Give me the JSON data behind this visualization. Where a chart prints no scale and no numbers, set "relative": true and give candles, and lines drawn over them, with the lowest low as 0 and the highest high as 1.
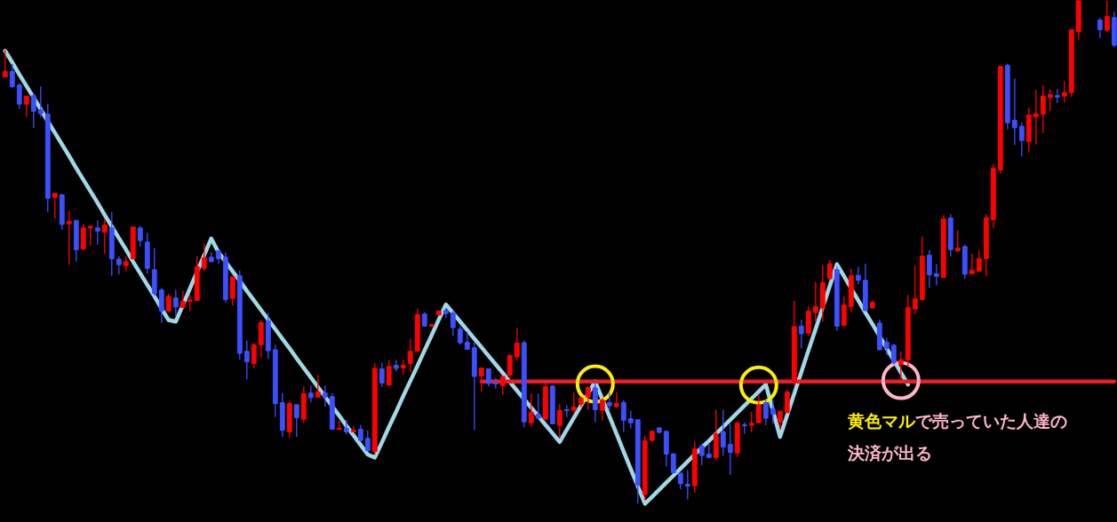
{
  "chart_data": {
    "type": "candlestick",
    "relative": true,
    "tick_labels": false,
    "categories": [
      null,
      null,
      null,
      null,
      null,
      null,
      null,
      null,
      null,
      null,
      null,
      null,
      null,
      null,
      null,
      null,
      null,
      null,
      null,
      null,
      null,
      null,
      null,
      null,
      null,
      null,
      null,
      null,
      null,
      null,
      null,
      null,
      null,
      null,
      null,
      null,
      null,
      null,
      null,
      null,
      null,
      null,
      null,
      null,
      null,
      null,
      null,
      null,
      null,
      null,
      null,
      null,
      null,
      null,
      null,
      null,
      null,
      null,
      null,
      null,
      null,
      null,
      null,
      null,
      null,
      null,
      null,
      null,
      null,
      null,
      null,
      null,
      null,
      null,
      null,
      null,
      null,
      null,
      null,
      null,
      null,
      null,
      null,
      null,
      null,
      null,
      null,
      null,
      null,
      null,
      null,
      null,
      null,
      null,
      null,
      null,
      null,
      null,
      null,
      null,
      null,
      null,
      null,
      null,
      null,
      null,
      null,
      null,
      null,
      null,
      null,
      null,
      null,
      null,
      null,
      null,
      null,
      null,
      null,
      null,
      null,
      null,
      null,
      null,
      null,
      null,
      null,
      null,
      null,
      null,
      null,
      null,
      null,
      null,
      null,
      null,
      null,
      null,
      null,
      null,
      null,
      null,
      null,
      null,
      null,
      null,
      null,
      null,
      null,
      null,
      null,
      null,
      null,
      null,
      null,
      null,
      null
    ],
    "ohlc": [
      [
        0.848,
        0.903,
        0.848,
        0.859
      ],
      [
        0.859,
        0.874,
        0.826,
        0.829
      ],
      [
        0.832,
        0.835,
        0.785,
        0.794
      ],
      [
        0.794,
        0.81,
        0.769,
        0.81
      ],
      [
        0.811,
        0.815,
        0.747,
        0.78
      ],
      [
        0.783,
        0.829,
        0.769,
        0.775
      ],
      [
        0.774,
        0.795,
        0.58,
        0.607
      ],
      [
        0.609,
        0.617,
        0.566,
        0.617
      ],
      [
        0.614,
        0.616,
        0.545,
        0.555
      ],
      [
        0.556,
        0.582,
        0.475,
        0.561
      ],
      [
        0.563,
        0.563,
        0.481,
        0.505
      ],
      [
        0.506,
        0.556,
        0.505,
        0.548
      ],
      [
        0.548,
        0.554,
        0.513,
        0.551
      ],
      [
        0.548,
        0.563,
        0.515,
        0.542
      ],
      [
        0.54,
        0.565,
        0.497,
        0.554
      ],
      [
        0.548,
        0.58,
        0.453,
        0.487
      ],
      [
        0.486,
        0.492,
        0.456,
        0.475
      ],
      [
        0.473,
        0.492,
        0.462,
        0.481
      ],
      [
        0.487,
        0.55,
        0.487,
        0.55
      ],
      [
        0.548,
        0.552,
        0.511,
        0.523
      ],
      [
        0.52,
        0.538,
        0.457,
        0.468
      ],
      [
        0.465,
        0.508,
        0.413,
        0.418
      ],
      [
        0.425,
        0.429,
        0.36,
        0.383
      ],
      [
        0.383,
        0.417,
        0.381,
        0.412
      ],
      [
        0.409,
        0.425,
        0.374,
        0.391
      ],
      [
        0.39,
        0.423,
        0.39,
        0.402
      ],
      [
        0.402,
        0.415,
        0.383,
        0.405
      ],
      [
        0.404,
        0.492,
        0.404,
        0.471
      ],
      [
        0.468,
        0.517,
        0.462,
        0.489
      ],
      [
        0.49,
        0.5,
        0.48,
        0.481
      ],
      [
        0.503,
        0.503,
        0.477,
        0.487
      ],
      [
        0.49,
        0.499,
        0.4,
        0.406
      ],
      [
        0.408,
        0.451,
        0.394,
        0.451
      ],
      [
        0.453,
        0.464,
        0.286,
        0.299
      ],
      [
        0.303,
        0.324,
        0.247,
        0.282
      ],
      [
        0.279,
        0.319,
        0.269,
        0.316
      ],
      [
        0.316,
        0.365,
        0.291,
        0.36
      ],
      [
        0.364,
        0.379,
        0.288,
        0.304
      ],
      [
        0.306,
        0.316,
        0.173,
        0.199
      ],
      [
        0.201,
        0.22,
        0.133,
        0.146
      ],
      [
        0.143,
        0.203,
        0.131,
        0.199
      ],
      [
        0.197,
        0.197,
        0.133,
        0.171
      ],
      [
        0.168,
        0.233,
        0.161,
        0.219
      ],
      [
        0.22,
        0.235,
        0.202,
        0.211
      ],
      [
        0.212,
        0.256,
        0.211,
        0.222
      ],
      [
        0.22,
        0.235,
        0.193,
        0.212
      ],
      [
        0.213,
        0.22,
        0.148,
        0.148
      ],
      [
        0.148,
        0.165,
        0.148,
        0.15
      ],
      [
        0.15,
        0.167,
        0.138,
        0.143
      ],
      [
        0.143,
        0.155,
        0.142,
        0.146
      ],
      [
        0.148,
        0.157,
        0.125,
        0.126
      ],
      [
        0.13,
        0.146,
        0.104,
        0.106
      ],
      [
        0.104,
        0.279,
        0.097,
        0.269
      ],
      [
        0.268,
        0.28,
        0.232,
        0.24
      ],
      [
        0.236,
        0.286,
        0.234,
        0.273
      ],
      [
        0.275,
        0.286,
        0.263,
        0.269
      ],
      [
        0.27,
        0.286,
        0.256,
        0.275
      ],
      [
        0.279,
        0.328,
        0.262,
        0.303
      ],
      [
        0.303,
        0.388,
        0.303,
        0.376
      ],
      [
        0.377,
        0.381,
        0.352,
        0.353
      ],
      [
        0.353,
        0.356,
        0.353,
        0.356
      ],
      [
        0.375,
        0.383,
        0.375,
        0.383
      ],
      [
        0.384,
        0.389,
        0.369,
        0.378
      ],
      [
        0.379,
        0.383,
        0.334,
        0.35
      ],
      [
        0.347,
        0.353,
        0.316,
        0.32
      ],
      [
        0.321,
        0.342,
        0.306,
        0.307
      ],
      [
        0.31,
        0.321,
        0.147,
        0.253
      ],
      [
        0.254,
        0.27,
        0.223,
        0.27
      ],
      [
        0.268,
        0.268,
        0.233,
        0.239
      ],
      [
        0.24,
        0.25,
        0.229,
        0.238
      ],
      [
        0.235,
        0.253,
        0.217,
        0.253
      ],
      [
        0.256,
        0.296,
        0.25,
        0.295
      ],
      [
        0.292,
        0.349,
        0.284,
        0.319
      ],
      [
        0.32,
        0.325,
        0.152,
        0.163
      ],
      [
        0.161,
        0.219,
        0.153,
        0.182
      ],
      [
        0.178,
        0.219,
        0.169,
        0.17
      ],
      [
        0.168,
        0.239,
        0.168,
        0.233
      ],
      [
        0.234,
        0.236,
        0.158,
        0.159
      ],
      [
        0.156,
        0.198,
        0.13,
        0.185
      ],
      [
        0.187,
        0.196,
        0.172,
        0.185
      ],
      [
        0.186,
        0.221,
        0.18,
        0.192
      ],
      [
        0.198,
        0.213,
        0.192,
        0.21
      ],
      [
        0.212,
        0.231,
        0.187,
        0.231
      ],
      [
        0.23,
        0.242,
        0.162,
        0.187
      ],
      [
        0.186,
        0.21,
        0.166,
        0.206
      ],
      [
        0.201,
        0.221,
        0.186,
        0.195
      ],
      [
        0.193,
        0.222,
        0.19,
        0.199
      ],
      [
        0.201,
        0.206,
        0.143,
        0.166
      ],
      [
        0.169,
        0.185,
        0.15,
        0.161
      ],
      [
        0.167,
        0.167,
        0.0,
        0.037
      ],
      [
        0.019,
        0.136,
        0.007,
        0.125
      ],
      [
        0.126,
        0.146,
        0.124,
        0.144
      ],
      [
        0.151,
        0.151,
        0.14,
        0.142
      ],
      [
        0.144,
        0.144,
        0.074,
        0.099
      ],
      [
        0.099,
        0.101,
        0.062,
        0.062
      ],
      [
        0.061,
        0.061,
        0.029,
        0.04
      ],
      [
        0.039,
        0.067,
        0.009,
        0.035
      ],
      [
        0.036,
        0.124,
        0.022,
        0.109
      ],
      [
        0.115,
        0.118,
        0.077,
        0.096
      ],
      [
        0.099,
        0.121,
        0.09,
        0.092
      ],
      [
        0.092,
        0.187,
        0.087,
        0.139
      ],
      [
        0.143,
        0.187,
        0.095,
        0.113
      ],
      [
        0.118,
        0.159,
        0.058,
        0.102
      ],
      [
        0.101,
        0.165,
        0.093,
        0.16
      ],
      [
        0.157,
        0.162,
        0.139,
        0.155
      ],
      [
        0.156,
        0.183,
        0.142,
        0.16
      ],
      [
        0.161,
        0.218,
        0.161,
        0.196
      ],
      [
        0.201,
        0.206,
        0.156,
        0.17
      ],
      [
        0.189,
        0.206,
        0.159,
        0.178
      ],
      [
        0.162,
        0.184,
        0.148,
        0.184
      ],
      [
        0.181,
        0.227,
        0.181,
        0.222
      ],
      [
        0.242,
        0.403,
        0.235,
        0.352
      ],
      [
        0.353,
        0.366,
        0.309,
        0.338
      ],
      [
        0.339,
        0.392,
        0.333,
        0.383
      ],
      [
        0.38,
        0.441,
        0.362,
        0.392
      ],
      [
        0.389,
        0.474,
        0.362,
        0.439
      ],
      [
        0.447,
        0.484,
        0.447,
        0.477
      ],
      [
        0.465,
        0.471,
        0.344,
        0.353
      ],
      [
        0.354,
        0.412,
        0.353,
        0.395
      ],
      [
        0.392,
        0.467,
        0.38,
        0.453
      ],
      [
        0.454,
        0.471,
        0.436,
        0.444
      ],
      [
        0.444,
        0.477,
        0.383,
        0.384
      ],
      [
        0.389,
        0.403,
        0.389,
        0.4
      ],
      [
        0.359,
        0.366,
        0.306,
        0.306
      ],
      [
        0.321,
        0.33,
        0.295,
        0.309
      ],
      [
        0.315,
        0.318,
        0.277,
        0.28
      ],
      [
        0.277,
        0.303,
        0.247,
        0.286
      ],
      [
        0.286,
        0.415,
        0.271,
        0.39
      ],
      [
        0.387,
        0.474,
        0.377,
        0.407
      ],
      [
        0.406,
        0.531,
        0.406,
        0.492
      ],
      [
        0.494,
        0.504,
        0.429,
        0.455
      ],
      [
        0.457,
        0.476,
        0.434,
        0.452
      ],
      [
        0.45,
        0.573,
        0.45,
        0.566
      ],
      [
        0.568,
        0.575,
        0.491,
        0.505
      ],
      [
        0.503,
        0.543,
        0.499,
        0.508
      ],
      [
        0.511,
        0.515,
        0.447,
        0.456
      ],
      [
        0.457,
        0.497,
        0.457,
        0.464
      ],
      [
        0.462,
        0.503,
        0.462,
        0.487
      ],
      [
        0.487,
        0.575,
        0.453,
        0.568
      ],
      [
        0.565,
        0.675,
        0.548,
        0.667
      ],
      [
        0.663,
        0.869,
        0.656,
        0.869
      ],
      [
        0.871,
        0.875,
        0.744,
        0.757
      ],
      [
        0.762,
        0.845,
        0.713,
        0.747
      ],
      [
        0.75,
        0.758,
        0.69,
        0.722
      ],
      [
        0.72,
        0.787,
        0.698,
        0.772
      ],
      [
        0.769,
        0.822,
        0.714,
        0.775
      ],
      [
        0.774,
        0.831,
        0.737,
        0.81
      ],
      [
        0.807,
        0.824,
        0.78,
        0.813
      ],
      [
        0.811,
        0.824,
        0.796,
        0.808
      ],
      [
        0.81,
        0.84,
        0.797,
        0.817
      ],
      [
        0.817,
        0.942,
        0.808,
        0.942
      ],
      [
        0.938,
        1.0,
        0.921,
        1.0
      ],
      null,
      null,
      [
        0.961,
        0.966,
        0.925,
        0.942
      ],
      [
        0.941,
        1.0,
        0.938,
        0.968
      ],
      [
        0.966,
        0.978,
        0.907,
        0.911
      ]
    ],
    "colors": [
      "#ff0000",
      "#3c50ff",
      "#3c50ff",
      "#ff0000",
      "#3c50ff",
      "#3c50ff",
      "#3c50ff",
      "#ff0000",
      "#3c50ff",
      "#ff0000",
      "#3c50ff",
      "#ff0000",
      "#ff0000",
      "#3c50ff",
      "#ff0000",
      "#3c50ff",
      "#3c50ff",
      "#ff0000",
      "#ff0000",
      "#3c50ff",
      "#3c50ff",
      "#3c50ff",
      "#3c50ff",
      "#ff0000",
      "#3c50ff",
      "#ff0000",
      "#ff0000",
      "#ff0000",
      "#ff0000",
      "#3c50ff",
      "#3c50ff",
      "#3c50ff",
      "#ff0000",
      "#3c50ff",
      "#3c50ff",
      "#ff0000",
      "#ff0000",
      "#3c50ff",
      "#3c50ff",
      "#3c50ff",
      "#ff0000",
      "#3c50ff",
      "#ff0000",
      "#3c50ff",
      "#ff0000",
      "#3c50ff",
      "#3c50ff",
      "#ff0000",
      "#3c50ff",
      "#ff0000",
      "#3c50ff",
      "#3c50ff",
      "#ff0000",
      "#3c50ff",
      "#ff0000",
      "#3c50ff",
      "#ff0000",
      "#ff0000",
      "#ff0000",
      "#3c50ff",
      "#ff0000",
      "#ff0000",
      "#3c50ff",
      "#3c50ff",
      "#3c50ff",
      "#3c50ff",
      "#3c50ff",
      "#ff0000",
      "#3c50ff",
      "#3c50ff",
      "#ff0000",
      "#ff0000",
      "#ff0000",
      "#3c50ff",
      "#ff0000",
      "#3c50ff",
      "#ff0000",
      "#3c50ff",
      "#ff0000",
      "#3c50ff",
      "#ff0000",
      "#ff0000",
      "#ff0000",
      "#3c50ff",
      "#ff0000",
      "#3c50ff",
      "#ff0000",
      "#3c50ff",
      "#3c50ff",
      "#3c50ff",
      "#ff0000",
      "#ff0000",
      "#3c50ff",
      "#3c50ff",
      "#3c50ff",
      "#3c50ff",
      "#3c50ff",
      "#ff0000",
      "#3c50ff",
      "#3c50ff",
      "#ff0000",
      "#3c50ff",
      "#3c50ff",
      "#ff0000",
      "#3c50ff",
      "#ff0000",
      "#ff0000",
      "#3c50ff",
      "#3c50ff",
      "#ff0000",
      "#ff0000",
      "#ff0000",
      "#3c50ff",
      "#ff0000",
      "#ff0000",
      "#ff0000",
      "#ff0000",
      "#3c50ff",
      "#ff0000",
      "#ff0000",
      "#3c50ff",
      "#3c50ff",
      "#ff0000",
      "#3c50ff",
      "#3c50ff",
      "#3c50ff",
      "#ff0000",
      "#ff0000",
      "#ff0000",
      "#ff0000",
      "#3c50ff",
      "#3c50ff",
      "#ff0000",
      "#3c50ff",
      "#ff0000",
      "#3c50ff",
      "#ff0000",
      "#ff0000",
      "#ff0000",
      "#ff0000",
      "#ff0000",
      "#3c50ff",
      "#3c50ff",
      "#3c50ff",
      "#ff0000",
      "#ff0000",
      "#ff0000",
      "#ff0000",
      "#3c50ff",
      "#ff0000",
      "#ff0000",
      "#ff0000",
      null,
      null,
      "#3c50ff",
      "#ff0000",
      "#3c50ff"
    ],
    "series": [
      {
        "type": "line",
        "color": "#9fd8e6",
        "values": [
          0.9,
          0.877,
          0.853,
          0.83,
          0.807,
          0.784,
          0.76,
          0.737,
          0.714,
          0.691,
          0.667,
          0.644,
          0.621,
          0.598,
          0.574,
          0.551,
          0.528,
          0.505,
          0.481,
          0.458,
          0.435,
          0.412,
          0.388,
          0.365,
          0.362,
          0.395,
          0.428,
          0.461,
          0.494,
          0.527,
          0.5,
          0.481,
          0.462,
          0.443,
          0.423,
          0.404,
          0.385,
          0.366,
          0.347,
          0.328,
          0.309,
          0.289,
          0.27,
          0.251,
          0.232,
          0.213,
          0.194,
          0.175,
          0.155,
          0.136,
          0.117,
          0.098,
          0.092,
          0.122,
          0.153,
          0.183,
          0.214,
          0.244,
          0.274,
          0.305,
          0.335,
          0.366,
          0.396,
          0.379,
          0.362,
          0.345,
          0.328,
          0.311,
          0.294,
          0.277,
          0.26,
          0.242,
          0.225,
          0.208,
          0.191,
          0.174,
          0.157,
          0.14,
          0.123,
          0.147,
          0.171,
          0.195,
          0.219,
          0.243,
          0.208,
          0.174,
          0.139,
          0.104,
          0.069,
          0.035,
          0.0,
          0.014,
          0.028,
          0.042,
          0.056,
          0.07,
          0.084,
          0.098,
          0.112,
          0.125,
          0.139,
          0.153,
          0.167,
          0.181,
          0.195,
          0.209,
          0.223,
          0.237,
          0.185,
          0.133,
          0.176,
          0.219,
          0.262,
          0.305,
          0.347,
          0.39,
          0.433,
          0.476,
          0.452,
          0.428,
          0.404,
          0.38,
          0.357,
          0.333,
          0.309,
          0.285,
          0.261,
          0.237,
          null,
          null,
          null,
          null,
          null,
          null,
          null,
          null,
          null,
          null,
          null,
          null,
          null,
          null,
          null,
          null,
          null,
          null,
          null,
          null,
          null,
          null,
          null,
          null,
          null,
          null,
          null,
          null,
          null
        ]
      },
      {
        "type": "line",
        "color": "#ee1c25",
        "values": [
          null,
          null,
          null,
          null,
          null,
          null,
          null,
          null,
          null,
          null,
          null,
          null,
          null,
          null,
          null,
          null,
          null,
          null,
          null,
          null,
          null,
          null,
          null,
          null,
          null,
          null,
          null,
          null,
          null,
          null,
          null,
          null,
          null,
          null,
          null,
          null,
          null,
          null,
          null,
          null,
          null,
          null,
          null,
          null,
          null,
          null,
          null,
          null,
          null,
          null,
          null,
          null,
          null,
          null,
          null,
          null,
          null,
          null,
          null,
          null,
          null,
          null,
          null,
          null,
          null,
          null,
          null,
          0.243,
          0.243,
          0.243,
          0.243,
          0.243,
          0.243,
          0.243,
          0.243,
          0.243,
          0.243,
          0.243,
          0.243,
          0.243,
          0.243,
          0.243,
          0.243,
          0.243,
          0.243,
          0.243,
          0.243,
          0.243,
          0.243,
          0.243,
          0.243,
          0.243,
          0.243,
          0.243,
          0.243,
          0.243,
          0.243,
          0.243,
          0.243,
          0.243,
          0.243,
          0.243,
          0.243,
          0.243,
          0.243,
          0.243,
          0.243,
          0.243,
          0.243,
          0.243,
          0.243,
          0.243,
          0.243,
          0.243,
          0.243,
          0.243,
          0.243,
          0.243,
          0.243,
          0.243,
          0.243,
          0.243,
          0.243,
          0.243,
          0.243,
          0.243,
          0.243,
          0.243,
          0.243,
          0.243,
          0.243,
          0.243,
          0.243,
          0.243,
          0.243,
          0.243,
          0.243,
          0.243,
          0.243,
          0.243,
          0.243,
          0.243,
          0.243,
          0.243,
          0.243,
          0.243,
          0.243,
          0.243,
          0.243,
          0.243,
          0.243,
          0.243,
          0.243,
          0.243,
          0.243,
          0.243,
          0.243
        ]
      },
      {
        "type": "scatter",
        "color": "#fff000",
        "marker": "circle",
        "values": [
          null,
          null,
          null,
          null,
          null,
          null,
          null,
          null,
          null,
          null,
          null,
          null,
          null,
          null,
          null,
          null,
          null,
          null,
          null,
          null,
          null,
          null,
          null,
          null,
          null,
          null,
          null,
          null,
          null,
          null,
          null,
          null,
          null,
          null,
          null,
          null,
          null,
          null,
          null,
          null,
          null,
          null,
          null,
          null,
          null,
          null,
          null,
          null,
          null,
          null,
          null,
          null,
          null,
          null,
          null,
          null,
          null,
          null,
          null,
          null,
          null,
          null,
          null,
          null,
          null,
          null,
          null,
          null,
          null,
          null,
          null,
          null,
          null,
          null,
          null,
          null,
          null,
          null,
          null,
          null,
          null,
          null,
          null,
          0.238,
          null,
          null,
          null,
          null,
          null,
          null,
          null,
          null,
          null,
          null,
          null,
          null,
          null,
          null,
          null,
          null,
          null,
          null,
          null,
          null,
          null,
          null,
          0.236,
          null,
          null,
          null,
          null,
          null,
          null,
          null,
          null,
          null,
          null,
          null,
          null,
          null,
          null,
          null,
          null,
          null,
          null,
          null,
          null,
          null,
          null,
          null,
          null,
          null,
          null,
          null,
          null,
          null,
          null,
          null,
          null,
          null,
          null,
          null,
          null,
          null,
          null,
          null,
          null,
          null,
          null,
          null,
          null,
          null,
          null,
          null,
          null,
          null,
          null
        ]
      },
      {
        "type": "scatter",
        "color": "#ffb6c8",
        "marker": "circle",
        "values": [
          null,
          null,
          null,
          null,
          null,
          null,
          null,
          null,
          null,
          null,
          null,
          null,
          null,
          null,
          null,
          null,
          null,
          null,
          null,
          null,
          null,
          null,
          null,
          null,
          null,
          null,
          null,
          null,
          null,
          null,
          null,
          null,
          null,
          null,
          null,
          null,
          null,
          null,
          null,
          null,
          null,
          null,
          null,
          null,
          null,
          null,
          null,
          null,
          null,
          null,
          null,
          null,
          null,
          null,
          null,
          null,
          null,
          null,
          null,
          null,
          null,
          null,
          null,
          null,
          null,
          null,
          null,
          null,
          null,
          null,
          null,
          null,
          null,
          null,
          null,
          null,
          null,
          null,
          null,
          null,
          null,
          null,
          null,
          null,
          null,
          null,
          null,
          null,
          null,
          null,
          null,
          null,
          null,
          null,
          null,
          null,
          null,
          null,
          null,
          null,
          null,
          null,
          null,
          null,
          null,
          null,
          null,
          null,
          null,
          null,
          null,
          null,
          null,
          null,
          null,
          null,
          null,
          null,
          null,
          null,
          null,
          null,
          null,
          null,
          null,
          null,
          0.245,
          null,
          null,
          null,
          null,
          null,
          null,
          null,
          null,
          null,
          null,
          null,
          null,
          null,
          null,
          null,
          null,
          null,
          null,
          null,
          null,
          null,
          null,
          null,
          null,
          null,
          null,
          null,
          null,
          null,
          null
        ]
      }
    ],
    "annotations": [
      "黄色マル",
      "で売っていた人達の",
      "決済が出る"
    ]
  }
}
